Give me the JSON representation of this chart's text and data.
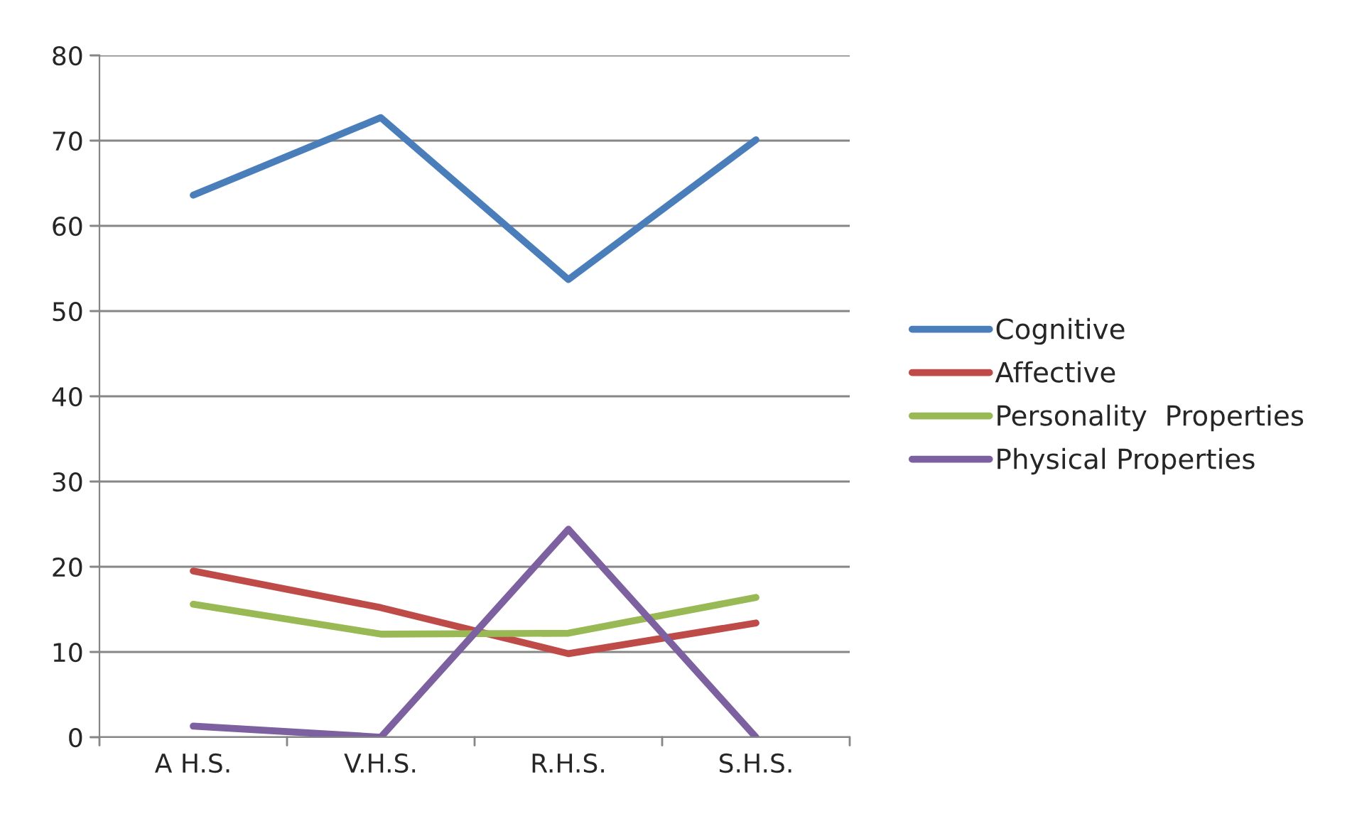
{
  "chart_data": {
    "type": "line",
    "categories": [
      "A H.S.",
      "V.H.S.",
      "R.H.S.",
      "S.H.S."
    ],
    "series": [
      {
        "name": "Cognitive",
        "color": "#4a7ebb",
        "values": [
          63.6,
          72.7,
          53.7,
          70.1
        ]
      },
      {
        "name": "Affective",
        "color": "#be4b48",
        "values": [
          19.5,
          15.2,
          9.8,
          13.4
        ]
      },
      {
        "name": "Personality  Properties",
        "color": "#98b954",
        "values": [
          15.6,
          12.1,
          12.2,
          16.4
        ]
      },
      {
        "name": "Physical Properties",
        "color": "#7d60a0",
        "values": [
          1.3,
          0,
          24.4,
          0
        ]
      }
    ],
    "ylim": [
      0,
      80
    ],
    "yticks": [
      0,
      10,
      20,
      30,
      40,
      50,
      60,
      70,
      80
    ],
    "grid": "y",
    "legend": "right",
    "marker": "none",
    "line_style": "solid"
  }
}
